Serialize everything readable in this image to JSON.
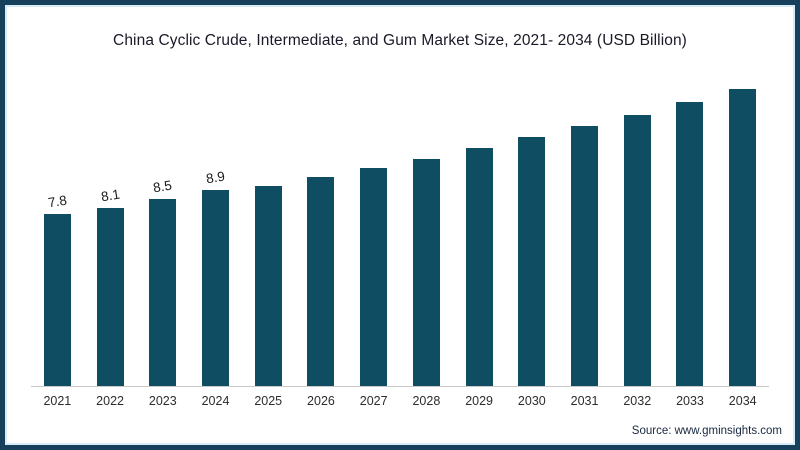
{
  "title": "China Cyclic Crude, Intermediate, and Gum Market Size, 2021- 2034 (USD Billion)",
  "source_label": "Source: www.gminsights.com",
  "colors": {
    "bar": "#0e4d62",
    "frame_border": "#16405c",
    "frame_inner_line": "#d8edf7",
    "axis_line": "#c9c9c9",
    "title_text": "#191927",
    "axis_text": "#2d2d2d",
    "source_text": "#18273f"
  },
  "chart_data": {
    "type": "bar",
    "title": "China Cyclic Crude, Intermediate, and Gum Market Size, 2021- 2034 (USD Billion)",
    "xlabel": "",
    "ylabel": "",
    "unit": "USD Billion",
    "categories": [
      "2021",
      "2022",
      "2023",
      "2024",
      "2025",
      "2026",
      "2027",
      "2028",
      "2029",
      "2030",
      "2031",
      "2032",
      "2033",
      "2034"
    ],
    "values": [
      7.8,
      8.1,
      8.5,
      8.9,
      9.1,
      9.5,
      9.9,
      10.3,
      10.8,
      11.3,
      11.8,
      12.3,
      12.9,
      13.5
    ],
    "data_labels": [
      "7.8",
      "8.1",
      "8.5",
      "8.9",
      "",
      "",
      "",
      "",
      "",
      "",
      "",
      "",
      "",
      ""
    ],
    "bar_color": "#0e4d62",
    "ylim": [
      0,
      14
    ],
    "grid": false,
    "legend": "none",
    "source": "Source: www.gminsights.com"
  }
}
